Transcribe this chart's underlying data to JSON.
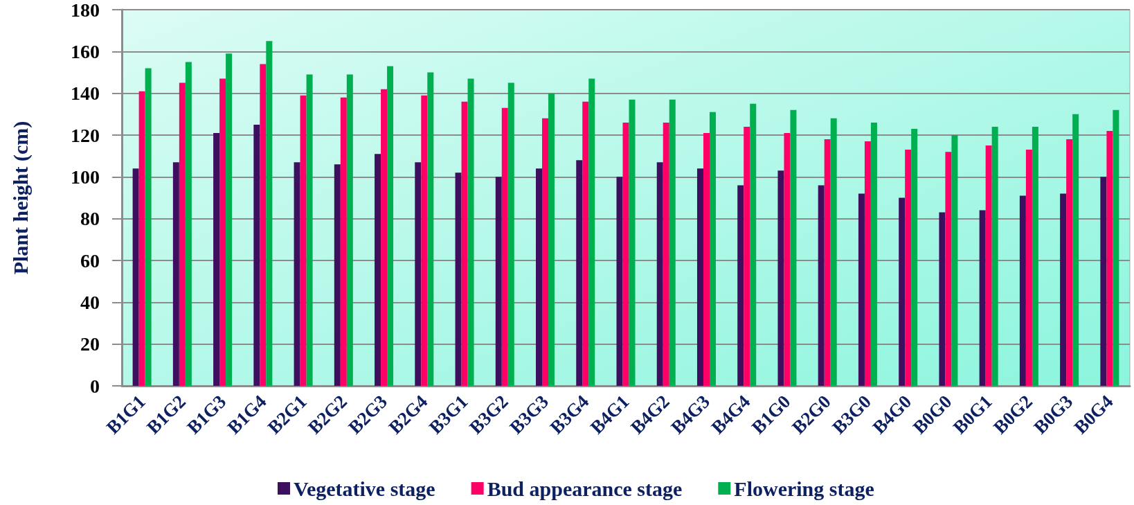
{
  "chart_data": {
    "type": "bar",
    "ylabel": "Plant height (cm)",
    "categories": [
      "B1G1",
      "B1G2",
      "B1G3",
      "B1G4",
      "B2G1",
      "B2G2",
      "B2G3",
      "B2G4",
      "B3G1",
      "B3G2",
      "B3G3",
      "B3G4",
      "B4G1",
      "B4G2",
      "B4G3",
      "B4G4",
      "B1G0",
      "B2G0",
      "B3G0",
      "B4G0",
      "B0G0",
      "B0G1",
      "B0G2",
      "B0G3",
      "B0G4"
    ],
    "series": [
      {
        "name": "Vegetative stage",
        "color": "#3d0f5e",
        "values": [
          104,
          107,
          121,
          125,
          107,
          106,
          111,
          107,
          102,
          100,
          104,
          108,
          100,
          107,
          104,
          96,
          103,
          96,
          92,
          90,
          83,
          84,
          91,
          92,
          100
        ]
      },
      {
        "name": "Bud appearance stage",
        "color": "#ff0066",
        "values": [
          141,
          145,
          147,
          154,
          139,
          138,
          142,
          139,
          136,
          133,
          128,
          136,
          126,
          126,
          121,
          124,
          121,
          118,
          117,
          113,
          112,
          115,
          113,
          118,
          122
        ]
      },
      {
        "name": "Flowering stage",
        "color": "#00b050",
        "values": [
          152,
          155,
          159,
          165,
          149,
          149,
          153,
          150,
          147,
          145,
          140,
          147,
          137,
          137,
          131,
          135,
          132,
          128,
          126,
          123,
          120,
          124,
          124,
          130,
          132
        ]
      }
    ],
    "ylim": [
      0,
      180
    ],
    "yticks": [
      0,
      20,
      40,
      60,
      80,
      100,
      120,
      140,
      160,
      180
    ],
    "grid": "y",
    "legend": "bottom"
  }
}
